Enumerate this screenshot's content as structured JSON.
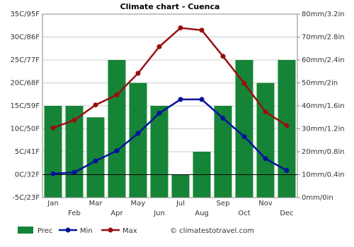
{
  "chart_data": {
    "type": "bar",
    "title": "Climate chart - Cuenca",
    "categories": [
      "Jan",
      "Feb",
      "Mar",
      "Apr",
      "May",
      "Jun",
      "Jul",
      "Aug",
      "Sep",
      "Oct",
      "Nov",
      "Dec"
    ],
    "series": [
      {
        "name": "Prec",
        "type": "bar",
        "axis": "y2",
        "color": "#158436",
        "values": [
          40,
          40,
          35,
          60,
          50,
          40,
          10,
          20,
          40,
          60,
          50,
          60
        ]
      },
      {
        "name": "Min",
        "type": "line",
        "color": "#00129e",
        "values": [
          0.2,
          0.5,
          3,
          5.2,
          9,
          13.4,
          16.4,
          16.4,
          12.3,
          8.3,
          3.5,
          0.9
        ]
      },
      {
        "name": "Max",
        "type": "line",
        "color": "#990f0f",
        "values": [
          10.2,
          11.9,
          15.2,
          17.4,
          22.1,
          27.9,
          32,
          31.5,
          25.8,
          19.9,
          13.7,
          10.7
        ]
      }
    ],
    "ylim": [
      -5,
      35
    ],
    "yticks": [
      {
        "value": -5,
        "label": "-5C/23F"
      },
      {
        "value": 0,
        "label": "0C/32F"
      },
      {
        "value": 5,
        "label": "5C/41F"
      },
      {
        "value": 10,
        "label": "10C/50F"
      },
      {
        "value": 15,
        "label": "15C/59F"
      },
      {
        "value": 20,
        "label": "20C/68F"
      },
      {
        "value": 25,
        "label": "25C/77F"
      },
      {
        "value": 30,
        "label": "30C/86F"
      },
      {
        "value": 35,
        "label": "35C/95F"
      }
    ],
    "y2lim": [
      0,
      80
    ],
    "y2ticks": [
      {
        "value": 0,
        "label": "0mm/0in"
      },
      {
        "value": 10,
        "label": "10mm/0.4in"
      },
      {
        "value": 20,
        "label": "20mm/0.8in"
      },
      {
        "value": 30,
        "label": "30mm/1.2in"
      },
      {
        "value": 40,
        "label": "40mm/1.6in"
      },
      {
        "value": 50,
        "label": "50mm/2in"
      },
      {
        "value": 60,
        "label": "60mm/2.4in"
      },
      {
        "value": 70,
        "label": "70mm/2.8in"
      },
      {
        "value": 80,
        "label": "80mm/3.2in"
      }
    ],
    "grid": true,
    "source": "© climatestotravel.com"
  }
}
